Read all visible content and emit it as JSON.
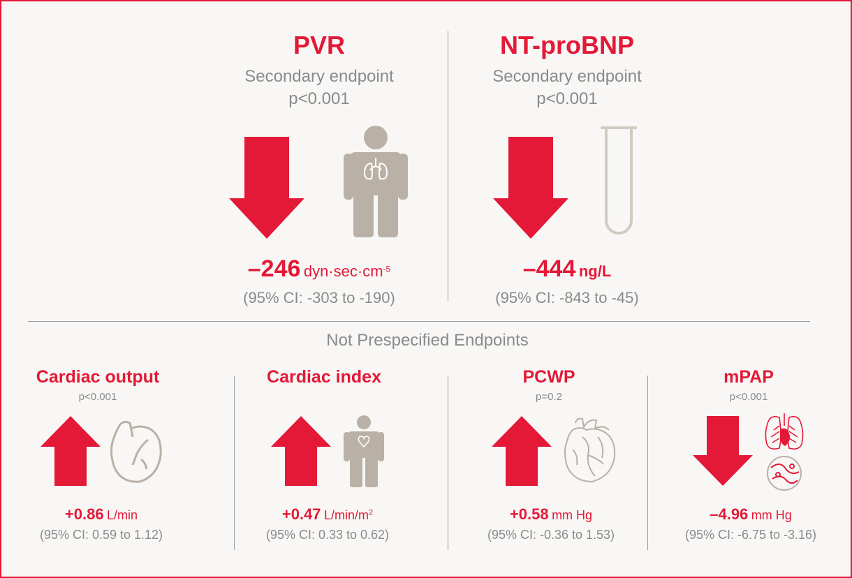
{
  "top": [
    {
      "title": "PVR",
      "subtitle": "Secondary endpoint",
      "p_value": "p<0.001",
      "direction": "down",
      "icon": "person-lungs-icon",
      "value": "–246",
      "unit": "dyn·sec·cm",
      "unit_sup": "-5",
      "ci": "(95%  CI: -303 to -190)"
    },
    {
      "title": "NT-proBNP",
      "subtitle": "Secondary endpoint",
      "p_value": "p<0.001",
      "direction": "down",
      "icon": "test-tube-icon",
      "value": "–444",
      "unit": "ng/L",
      "unit_sup": "",
      "ci": "(95%  CI: -843 to -45)"
    }
  ],
  "section_label": "Not Prespecified Endpoints",
  "bottom": [
    {
      "title": "Cardiac output",
      "p_value": "p<0.001",
      "direction": "up",
      "icon": "heart-outline-icon",
      "value": "+0.86",
      "unit": "L/min",
      "unit_sup": "",
      "ci": "(95%  CI: 0.59 to 1.12)"
    },
    {
      "title": "Cardiac index",
      "p_value": "",
      "direction": "up",
      "icon": "person-heart-icon",
      "value": "+0.47",
      "unit": "L/min/m",
      "unit_sup": "2",
      "ci": "(95%  CI: 0.33 to 0.62)"
    },
    {
      "title": "PCWP",
      "p_value": "p=0.2",
      "direction": "up",
      "icon": "anatomical-heart-icon",
      "value": "+0.58",
      "unit": "mm Hg",
      "unit_sup": "",
      "ci": "(95%  CI: -0.36 to 1.53)"
    },
    {
      "title": "mPAP",
      "p_value": "p<0.001",
      "direction": "down",
      "icon": "lungs-vessel-icon",
      "value": "–4.96",
      "unit": "mm Hg",
      "unit_sup": "",
      "ci": "(95%  CI: -6.75 to -3.16)"
    }
  ],
  "colors": {
    "accent": "#e31937",
    "text_grey": "#8a8a8a",
    "icon_grey": "#b9b1a6",
    "background": "#f8f7f5"
  }
}
